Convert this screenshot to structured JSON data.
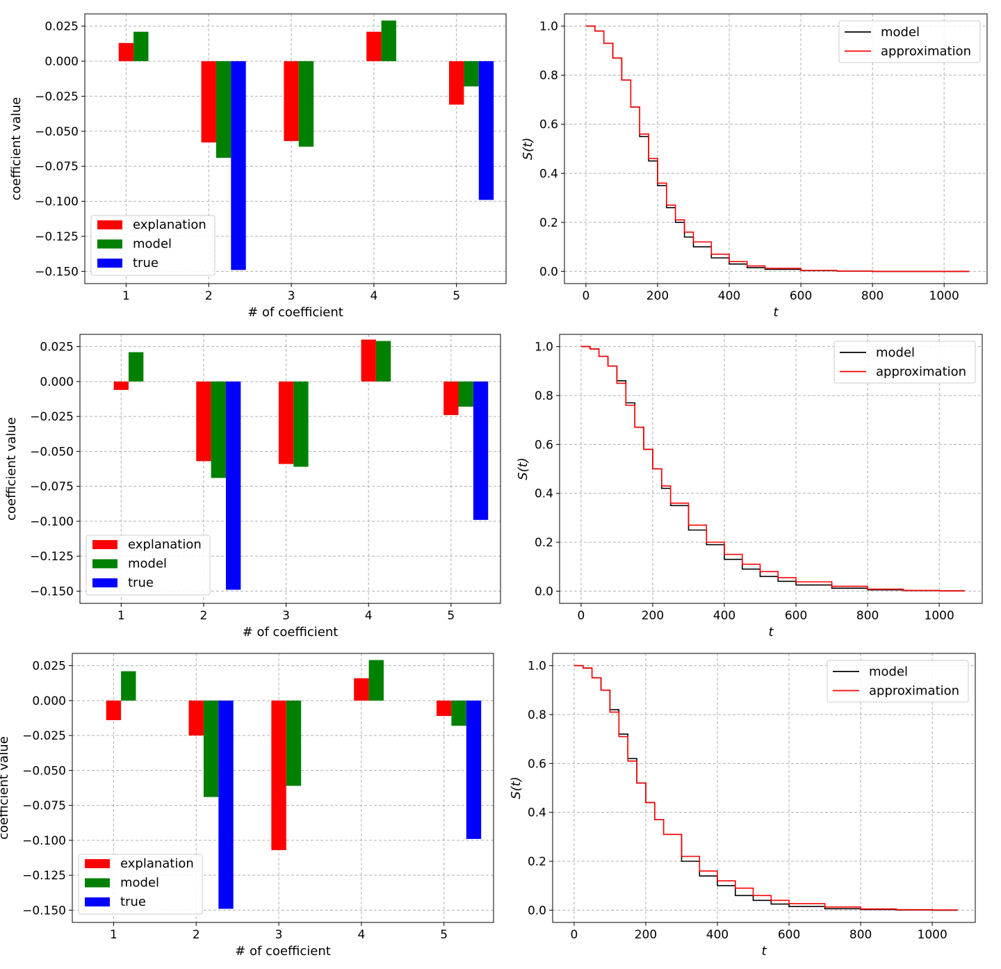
{
  "colors": {
    "explanation": "#ff0000",
    "model_bar": "#008000",
    "true": "#0000ff",
    "model_line": "#000000",
    "approximation": "#ff0000",
    "grid": "#b0b0b0"
  },
  "chart_data": [
    {
      "type": "bar",
      "row": 1,
      "xlabel": "# of coefficient",
      "ylabel": "coefficient value",
      "categories": [
        "1",
        "2",
        "3",
        "4",
        "5"
      ],
      "ylim": [
        -0.15,
        0.025
      ],
      "yticks": [
        "0.025",
        "0.000",
        "−0.025",
        "−0.050",
        "−0.075",
        "−0.100",
        "−0.125",
        "−0.150"
      ],
      "ytick_values": [
        0.025,
        0.0,
        -0.025,
        -0.05,
        -0.075,
        -0.1,
        -0.125,
        -0.15
      ],
      "grid": true,
      "legend_position": "bottom-left",
      "series": [
        {
          "name": "explanation",
          "values": [
            0.013,
            -0.058,
            -0.057,
            0.021,
            -0.031
          ]
        },
        {
          "name": "model",
          "values": [
            0.021,
            -0.069,
            -0.061,
            0.029,
            -0.018
          ]
        },
        {
          "name": "true",
          "values": [
            0.0,
            -0.149,
            0.0,
            0.0,
            -0.099
          ]
        }
      ]
    },
    {
      "type": "line",
      "row": 1,
      "xlabel": "t",
      "ylabel": "S(t)",
      "xlim": [
        -60,
        1120
      ],
      "ylim": [
        -0.05,
        1.05
      ],
      "xticks": [
        "0",
        "200",
        "400",
        "600",
        "800",
        "1000"
      ],
      "xtick_values": [
        0,
        200,
        400,
        600,
        800,
        1000
      ],
      "yticks": [
        "0.0",
        "0.2",
        "0.4",
        "0.6",
        "0.8",
        "1.0"
      ],
      "ytick_values": [
        0,
        0.2,
        0.4,
        0.6,
        0.8,
        1.0
      ],
      "grid": true,
      "legend_position": "top-right",
      "series": [
        {
          "name": "model",
          "x": [
            0,
            25,
            50,
            75,
            100,
            125,
            150,
            175,
            200,
            225,
            250,
            275,
            300,
            350,
            400,
            450,
            500,
            600,
            700,
            800,
            900,
            1000,
            1070
          ],
          "y": [
            1.0,
            0.98,
            0.93,
            0.87,
            0.78,
            0.67,
            0.55,
            0.45,
            0.35,
            0.26,
            0.2,
            0.14,
            0.1,
            0.055,
            0.03,
            0.015,
            0.008,
            0.003,
            0.001,
            0.0,
            0.0,
            0.0,
            0.0
          ]
        },
        {
          "name": "approximation",
          "x": [
            0,
            25,
            50,
            75,
            100,
            125,
            150,
            175,
            200,
            225,
            250,
            275,
            300,
            350,
            400,
            450,
            500,
            600,
            700,
            800,
            900,
            1000,
            1070
          ],
          "y": [
            1.0,
            0.98,
            0.93,
            0.87,
            0.78,
            0.67,
            0.56,
            0.46,
            0.36,
            0.27,
            0.21,
            0.16,
            0.12,
            0.07,
            0.04,
            0.022,
            0.012,
            0.004,
            0.001,
            0.0,
            0.0,
            0.0,
            0.0
          ]
        }
      ]
    },
    {
      "type": "bar",
      "row": 2,
      "xlabel": "# of coefficient",
      "ylabel": "coefficient value",
      "categories": [
        "1",
        "2",
        "3",
        "4",
        "5"
      ],
      "ylim": [
        -0.15,
        0.025
      ],
      "yticks": [
        "0.025",
        "0.000",
        "−0.025",
        "−0.050",
        "−0.075",
        "−0.100",
        "−0.125",
        "−0.150"
      ],
      "ytick_values": [
        0.025,
        0.0,
        -0.025,
        -0.05,
        -0.075,
        -0.1,
        -0.125,
        -0.15
      ],
      "grid": true,
      "legend_position": "bottom-left",
      "series": [
        {
          "name": "explanation",
          "values": [
            -0.006,
            -0.057,
            -0.059,
            0.03,
            -0.024
          ]
        },
        {
          "name": "model",
          "values": [
            0.021,
            -0.069,
            -0.061,
            0.029,
            -0.018
          ]
        },
        {
          "name": "true",
          "values": [
            0.0,
            -0.149,
            0.0,
            0.0,
            -0.099
          ]
        }
      ]
    },
    {
      "type": "line",
      "row": 2,
      "xlabel": "t",
      "ylabel": "S(t)",
      "xlim": [
        -60,
        1120
      ],
      "ylim": [
        -0.05,
        1.05
      ],
      "xticks": [
        "0",
        "200",
        "400",
        "600",
        "800",
        "1000"
      ],
      "xtick_values": [
        0,
        200,
        400,
        600,
        800,
        1000
      ],
      "yticks": [
        "0.0",
        "0.2",
        "0.4",
        "0.6",
        "0.8",
        "1.0"
      ],
      "ytick_values": [
        0,
        0.2,
        0.4,
        0.6,
        0.8,
        1.0
      ],
      "grid": true,
      "legend_position": "top-right",
      "series": [
        {
          "name": "model",
          "x": [
            0,
            25,
            50,
            75,
            100,
            125,
            150,
            175,
            200,
            225,
            250,
            300,
            350,
            400,
            450,
            500,
            550,
            600,
            700,
            800,
            900,
            1000,
            1070
          ],
          "y": [
            1.0,
            0.99,
            0.96,
            0.92,
            0.86,
            0.77,
            0.67,
            0.58,
            0.5,
            0.42,
            0.35,
            0.25,
            0.19,
            0.13,
            0.09,
            0.06,
            0.04,
            0.025,
            0.012,
            0.005,
            0.002,
            0.001,
            0.0
          ]
        },
        {
          "name": "approximation",
          "x": [
            0,
            25,
            50,
            75,
            100,
            125,
            150,
            175,
            200,
            225,
            250,
            300,
            350,
            400,
            450,
            500,
            550,
            600,
            700,
            800,
            900,
            1000,
            1070
          ],
          "y": [
            1.0,
            0.99,
            0.96,
            0.92,
            0.85,
            0.76,
            0.67,
            0.58,
            0.5,
            0.43,
            0.36,
            0.27,
            0.2,
            0.15,
            0.11,
            0.08,
            0.055,
            0.038,
            0.02,
            0.008,
            0.003,
            0.001,
            0.0
          ]
        }
      ]
    },
    {
      "type": "bar",
      "row": 3,
      "xlabel": "# of coefficient",
      "ylabel": "coefficient value",
      "categories": [
        "1",
        "2",
        "3",
        "4",
        "5"
      ],
      "ylim": [
        -0.15,
        0.025
      ],
      "yticks": [
        "0.025",
        "0.000",
        "−0.025",
        "−0.050",
        "−0.075",
        "−0.100",
        "−0.125",
        "−0.150"
      ],
      "ytick_values": [
        0.025,
        0.0,
        -0.025,
        -0.05,
        -0.075,
        -0.1,
        -0.125,
        -0.15
      ],
      "grid": true,
      "legend_position": "bottom-left",
      "series": [
        {
          "name": "explanation",
          "values": [
            -0.014,
            -0.025,
            -0.107,
            0.016,
            -0.011
          ]
        },
        {
          "name": "model",
          "values": [
            0.021,
            -0.069,
            -0.061,
            0.029,
            -0.018
          ]
        },
        {
          "name": "true",
          "values": [
            0.0,
            -0.149,
            0.0,
            0.0,
            -0.099
          ]
        }
      ]
    },
    {
      "type": "line",
      "row": 3,
      "xlabel": "t",
      "ylabel": "S(t)",
      "xlim": [
        -60,
        1120
      ],
      "ylim": [
        -0.05,
        1.05
      ],
      "xticks": [
        "0",
        "200",
        "400",
        "600",
        "800",
        "1000"
      ],
      "xtick_values": [
        0,
        200,
        400,
        600,
        800,
        1000
      ],
      "yticks": [
        "0.0",
        "0.2",
        "0.4",
        "0.6",
        "0.8",
        "1.0"
      ],
      "ytick_values": [
        0,
        0.2,
        0.4,
        0.6,
        0.8,
        1.0
      ],
      "grid": true,
      "legend_position": "top-right",
      "series": [
        {
          "name": "model",
          "x": [
            0,
            25,
            50,
            75,
            100,
            125,
            150,
            175,
            200,
            225,
            250,
            300,
            350,
            400,
            450,
            500,
            550,
            600,
            700,
            800,
            900,
            1000,
            1070
          ],
          "y": [
            1.0,
            0.99,
            0.95,
            0.9,
            0.82,
            0.72,
            0.62,
            0.52,
            0.44,
            0.37,
            0.31,
            0.2,
            0.14,
            0.1,
            0.06,
            0.04,
            0.025,
            0.015,
            0.006,
            0.003,
            0.001,
            0.0,
            0.0
          ]
        },
        {
          "name": "approximation",
          "x": [
            0,
            25,
            50,
            75,
            100,
            125,
            150,
            175,
            200,
            225,
            250,
            300,
            350,
            400,
            450,
            500,
            550,
            600,
            700,
            800,
            900,
            1000,
            1070
          ],
          "y": [
            1.0,
            0.99,
            0.95,
            0.9,
            0.81,
            0.71,
            0.61,
            0.52,
            0.44,
            0.37,
            0.31,
            0.22,
            0.16,
            0.12,
            0.09,
            0.06,
            0.04,
            0.027,
            0.013,
            0.005,
            0.002,
            0.001,
            0.0
          ]
        }
      ]
    }
  ]
}
